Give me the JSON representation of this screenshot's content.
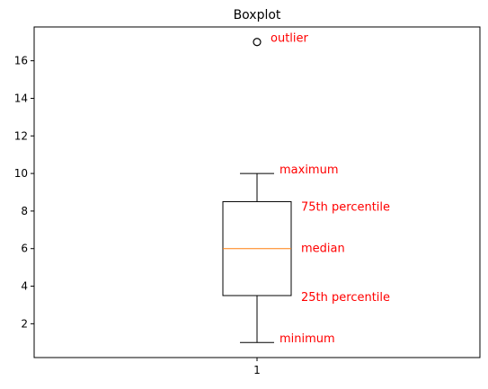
{
  "chart_data": {
    "type": "boxplot",
    "title": "Boxplot",
    "xlabel": "",
    "ylabel": "",
    "categories": [
      "1"
    ],
    "ylim": [
      0.2,
      17.8
    ],
    "yticks": [
      2,
      4,
      6,
      8,
      10,
      12,
      14,
      16
    ],
    "grid": false,
    "box": {
      "minimum": 1,
      "q1": 3.5,
      "median": 6,
      "q3": 8.5,
      "maximum": 10,
      "outliers": [
        17
      ]
    },
    "annotations": [
      {
        "text": "outlier",
        "value": 17.2,
        "color": "#ff0000"
      },
      {
        "text": "maximum",
        "value": 10.2,
        "color": "#ff0000"
      },
      {
        "text": "75th percentile",
        "value": 8.2,
        "color": "#ff0000"
      },
      {
        "text": "median",
        "value": 6.0,
        "color": "#ff0000"
      },
      {
        "text": "25th percentile",
        "value": 3.4,
        "color": "#ff0000"
      },
      {
        "text": "minimum",
        "value": 1.2,
        "color": "#ff0000"
      }
    ],
    "colors": {
      "box": "#000000",
      "median": "#ff7f0e",
      "annotation": "#ff0000"
    }
  }
}
